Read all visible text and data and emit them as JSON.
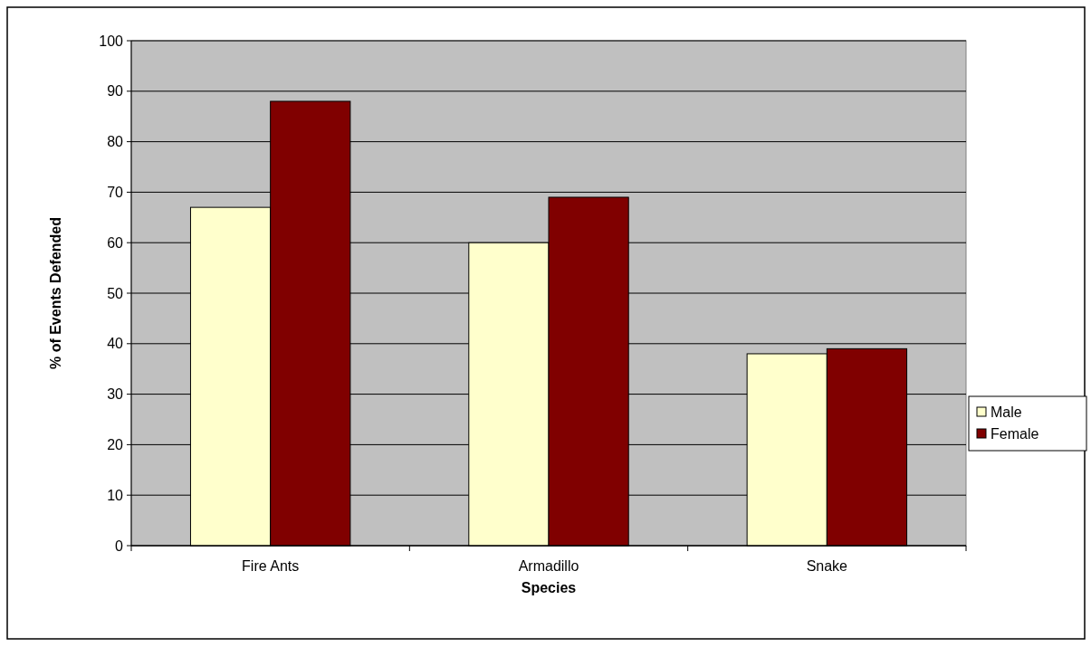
{
  "chart_data": {
    "type": "bar",
    "xlabel": "Species",
    "ylabel": "% of Events Defended",
    "categories": [
      "Fire Ants",
      "Armadillo",
      "Snake"
    ],
    "series": [
      {
        "name": "Male",
        "color": "#ffffcc",
        "values": [
          67,
          60,
          38
        ]
      },
      {
        "name": "Female",
        "color": "#800000",
        "values": [
          88,
          69,
          39
        ]
      }
    ],
    "ylim": [
      0,
      100
    ],
    "yticks": [
      0,
      10,
      20,
      30,
      40,
      50,
      60,
      70,
      80,
      90,
      100
    ],
    "grid": "y",
    "legend": "right"
  }
}
